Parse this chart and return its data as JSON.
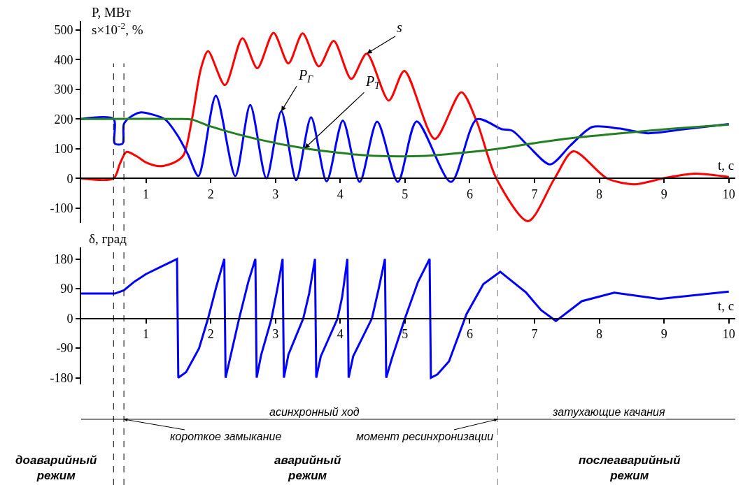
{
  "chart_data": [
    {
      "type": "line",
      "ylabel": "P, МВт\ns×10$^{-2}$, %",
      "xlabel": "t, с",
      "xlim": [
        0,
        10.1
      ],
      "xticks": [
        1,
        2,
        3,
        4,
        5,
        6,
        7,
        8,
        9,
        10
      ],
      "ylim": [
        -150,
        530
      ],
      "yticks": [
        -100,
        0,
        100,
        200,
        300,
        400,
        500
      ],
      "grid": false,
      "legend": false,
      "series": [
        {
          "name": "s",
          "color": "#ff0000",
          "x": [
            0,
            0.5,
            0.6,
            0.7,
            0.86,
            1.0,
            1.22,
            1.44,
            1.58,
            1.71,
            1.85,
            1.96,
            2.22,
            2.49,
            2.72,
            2.97,
            3.2,
            3.42,
            3.67,
            3.9,
            4.17,
            4.41,
            4.75,
            4.99,
            5.46,
            5.87,
            6.11,
            6.41,
            6.9,
            7.31,
            7.6,
            8.12,
            8.54,
            8.98,
            9.47,
            10
          ],
          "values": [
            0,
            0,
            50,
            89,
            74,
            54,
            41,
            54,
            78,
            198,
            370,
            428,
            314,
            472,
            371,
            490,
            387,
            488,
            377,
            463,
            335,
            420,
            262,
            362,
            133,
            290,
            190,
            0,
            -144,
            0,
            91,
            0,
            -20,
            0,
            16,
            5
          ]
        },
        {
          "name": "P$_{Г}$",
          "color": "#0000ff",
          "x": [
            0,
            0.5,
            0.52,
            0.64,
            0.66,
            0.75,
            0.91,
            1.1,
            1.3,
            1.49,
            1.65,
            1.81,
            2.08,
            2.38,
            2.61,
            2.86,
            3.09,
            3.32,
            3.55,
            3.79,
            4.04,
            4.3,
            4.57,
            4.89,
            5.18,
            5.71,
            6.11,
            6.49,
            6.66,
            6.9,
            7.24,
            7.55,
            7.89,
            8.3,
            8.75,
            9.3,
            10
          ],
          "values": [
            200,
            200,
            117,
            117,
            183,
            205,
            222,
            215,
            198,
            144,
            80,
            8,
            278,
            8,
            247,
            0,
            226,
            -6,
            206,
            -10,
            195,
            -12,
            191,
            -12,
            192,
            -12,
            199,
            166,
            160,
            110,
            47,
            110,
            173,
            168,
            152,
            165,
            183
          ]
        },
        {
          "name": "P$_{Т}$",
          "color": "#228022",
          "x": [
            0,
            1.5,
            1.71,
            2.0,
            2.72,
            3.45,
            4.17,
            4.53,
            5.33,
            5.87,
            6.41,
            6.95,
            7.67,
            8.39,
            9.11,
            10
          ],
          "values": [
            200,
            200,
            198,
            175,
            132,
            101,
            82,
            76,
            76,
            86,
            99,
            117,
            138,
            153,
            167,
            181
          ]
        }
      ],
      "ref_lines": [
        {
          "axis": "x",
          "value": 0.5,
          "line_style": "dashed"
        },
        {
          "axis": "x",
          "value": 0.66,
          "line_style": "dashed"
        },
        {
          "axis": "x",
          "value": 6.43,
          "line_style": "dashed"
        }
      ]
    },
    {
      "type": "line",
      "ylabel": "δ, град",
      "xlabel": "t, с",
      "xlim": [
        0,
        10.1
      ],
      "xticks": [
        1,
        2,
        3,
        4,
        5,
        6,
        7,
        8,
        9,
        10
      ],
      "ylim": [
        -200,
        215
      ],
      "yticks": [
        -180,
        -90,
        0,
        90,
        180
      ],
      "grid": false,
      "legend": false,
      "series": [
        {
          "color": "#0000ff",
          "x": [
            0,
            0.52,
            0.66,
            0.82,
            1.0,
            1.25,
            1.48,
            1.5,
            1.62,
            1.82,
            1.96,
            2.09,
            2.21,
            2.23,
            2.3,
            2.44,
            2.58,
            2.69,
            2.71,
            2.78,
            2.94,
            3.03,
            3.11,
            3.13,
            3.2,
            3.43,
            3.52,
            3.61,
            3.63,
            3.7,
            3.96,
            4.03,
            4.11,
            4.13,
            4.2,
            4.49,
            4.6,
            4.69,
            4.71,
            4.8,
            5.0,
            5.2,
            5.38,
            5.4,
            5.5,
            5.68,
            5.95,
            6.21,
            6.47,
            6.87,
            7.1,
            7.33,
            7.73,
            8.23,
            8.93,
            10
          ],
          "values": [
            75,
            75,
            85,
            111,
            134,
            158,
            180,
            -180,
            -163,
            -91,
            0,
            98,
            180,
            -180,
            -120,
            0,
            110,
            180,
            -180,
            -110,
            0,
            90,
            180,
            -180,
            -110,
            0,
            75,
            180,
            -180,
            -115,
            0,
            65,
            180,
            -180,
            -115,
            0,
            95,
            180,
            -180,
            -120,
            0,
            110,
            180,
            -180,
            -170,
            -130,
            13,
            104,
            141,
            78,
            25,
            -8,
            52,
            78,
            59,
            81
          ]
        }
      ],
      "ref_lines": [
        {
          "axis": "x",
          "value": 0.5,
          "line_style": "dashed"
        },
        {
          "axis": "x",
          "value": 0.66,
          "line_style": "dashed",
          "label": "короткое замыкание"
        },
        {
          "axis": "x",
          "value": 6.43,
          "line_style": "dashed",
          "label": "момент ресинхронизации"
        }
      ],
      "annotations": [
        "асинхронный ход",
        "затухающие качания",
        "доаварийный\nрежим",
        "аварийный\nрежим",
        "послеаварийный\nрежим"
      ]
    }
  ]
}
